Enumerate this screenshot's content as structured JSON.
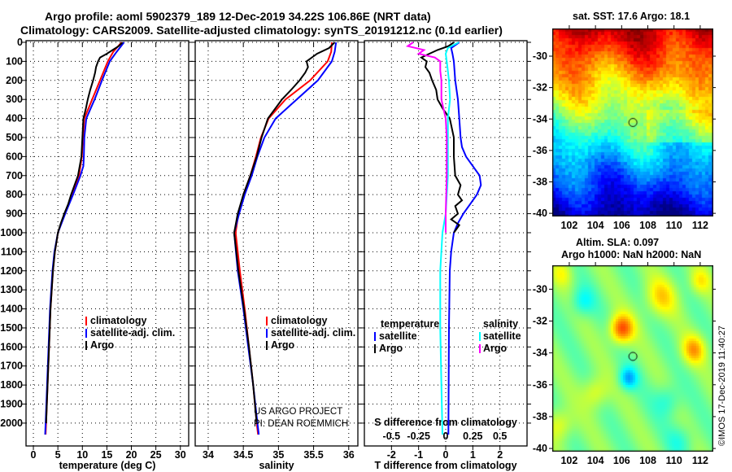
{
  "title_line1": "Argo profile: aoml 5902379_189 12-Dec-2019 34.22S 106.86E (NRT data)",
  "title_line2": "Climatology: CARS2009. Satellite-adjusted climatology: synTS_20191212.nc (0.1d earlier)",
  "credit_line1": "US ARGO PROJECT",
  "credit_line2": "PI: DEAN ROEMMICH",
  "watermark": "©IMOS 17-Dec-2019 11:40:27",
  "colors": {
    "climatology": "#ff0000",
    "satellite": "#0000ff",
    "argo": "#000000",
    "sal_satellite": "#00ffff",
    "sal_argo": "#ff00ff"
  },
  "chart_data": [
    {
      "type": "line",
      "xlabel": "temperature (deg C)",
      "ylabel": "",
      "xlim": [
        -1.5,
        31.7
      ],
      "ylim": [
        0,
        2120
      ],
      "xticks": [
        0,
        5,
        10,
        15,
        20,
        25,
        30
      ],
      "yticks": [
        0,
        100,
        200,
        300,
        400,
        500,
        600,
        700,
        800,
        900,
        1000,
        1100,
        1200,
        1300,
        1400,
        1500,
        1600,
        1700,
        1800,
        1900,
        2000
      ],
      "grid": true,
      "legend": {
        "placement": "bottom-middle",
        "entries": [
          "climatology",
          "satellite-adj. clim.",
          "Argo"
        ]
      },
      "series": [
        {
          "name": "climatology",
          "color": "#ff0000",
          "depth": [
            0,
            50,
            100,
            200,
            300,
            400,
            500,
            600,
            700,
            800,
            900,
            1000,
            1100,
            1200,
            1400,
            1600,
            1800,
            2000,
            2060
          ],
          "values": [
            18.0,
            16.3,
            15.2,
            13.6,
            12.0,
            10.4,
            10.1,
            9.9,
            9.3,
            7.9,
            6.4,
            5.0,
            4.4,
            4.0,
            3.5,
            3.2,
            2.9,
            2.6,
            2.5
          ]
        },
        {
          "name": "satellite-adj. clim.",
          "color": "#0000ff",
          "depth": [
            0,
            50,
            100,
            200,
            300,
            400,
            500,
            600,
            650,
            700,
            800,
            900,
            1000,
            1100,
            1200,
            1400,
            1600,
            1800,
            2000,
            2060
          ],
          "values": [
            18.5,
            17.0,
            15.6,
            14.0,
            12.5,
            10.8,
            10.4,
            10.3,
            10.2,
            9.6,
            8.1,
            6.5,
            5.0,
            4.3,
            3.9,
            3.4,
            3.1,
            2.8,
            2.5,
            2.4
          ]
        },
        {
          "name": "Argo",
          "color": "#000000",
          "depth": [
            0,
            20,
            40,
            60,
            80,
            100,
            130,
            160,
            200,
            250,
            300,
            350,
            400,
            500,
            600,
            700,
            800,
            850,
            900,
            950,
            1000,
            1100,
            1200,
            1400,
            1600,
            1800,
            2000
          ],
          "values": [
            18.2,
            17.4,
            16.2,
            15.0,
            13.6,
            13.2,
            12.8,
            12.6,
            12.2,
            11.6,
            11.1,
            10.7,
            10.2,
            10.0,
            9.8,
            9.1,
            7.7,
            7.1,
            6.3,
            5.6,
            5.0,
            4.4,
            4.0,
            3.5,
            3.2,
            2.9,
            2.6
          ]
        }
      ]
    },
    {
      "type": "line",
      "xlabel": "salinity",
      "xlim": [
        33.815,
        36.13
      ],
      "ylim": [
        0,
        2120
      ],
      "xticks": [
        34,
        34.5,
        35,
        35.5,
        36
      ],
      "grid": true,
      "legend": {
        "placement": "bottom-middle",
        "entries": [
          "climatology",
          "satellite-adj. clim.",
          "Argo"
        ]
      },
      "series": [
        {
          "name": "climatology",
          "color": "#ff0000",
          "depth": [
            0,
            50,
            100,
            200,
            300,
            400,
            500,
            600,
            700,
            800,
            900,
            1000,
            1200,
            1400,
            1600,
            1800,
            2000,
            2060
          ],
          "values": [
            35.76,
            35.75,
            35.7,
            35.45,
            35.1,
            34.86,
            34.75,
            34.68,
            34.6,
            34.5,
            34.43,
            34.39,
            34.45,
            34.52,
            34.58,
            34.64,
            34.69,
            34.71
          ]
        },
        {
          "name": "satellite-adj. clim.",
          "color": "#0000ff",
          "depth": [
            0,
            50,
            100,
            200,
            300,
            400,
            500,
            600,
            700,
            800,
            900,
            1000,
            1200,
            1400,
            1600,
            1800,
            2000,
            2060
          ],
          "values": [
            35.82,
            35.8,
            35.76,
            35.56,
            35.26,
            34.96,
            34.8,
            34.7,
            34.62,
            34.52,
            34.44,
            34.37,
            34.42,
            34.5,
            34.57,
            34.64,
            34.7,
            34.72
          ]
        },
        {
          "name": "Argo",
          "color": "#000000",
          "depth": [
            0,
            30,
            60,
            100,
            130,
            160,
            200,
            250,
            300,
            400,
            500,
            600,
            700,
            800,
            900,
            1000,
            1200,
            1400,
            1600,
            1800,
            2000
          ],
          "values": [
            35.8,
            35.72,
            35.55,
            35.4,
            35.42,
            35.38,
            35.3,
            35.18,
            35.05,
            34.85,
            34.76,
            34.69,
            34.6,
            34.5,
            34.42,
            34.37,
            34.43,
            34.51,
            34.58,
            34.64,
            34.69
          ]
        }
      ]
    },
    {
      "type": "line",
      "xlabel": "T difference from climatology",
      "xlabel_secondary": "S difference from climatology",
      "xlim": [
        -3,
        3
      ],
      "xlim_secondary": [
        -0.75,
        0.75
      ],
      "ylim": [
        0,
        2120
      ],
      "xticks": [
        -2,
        -1,
        0,
        1,
        2
      ],
      "xticks_secondary": [
        -0.5,
        -0.25,
        0,
        0.25,
        0.5
      ],
      "xtick_labels_secondary": [
        "-0.5",
        "-0.25",
        "0",
        "0.25",
        "0.5"
      ],
      "grid": true,
      "legend": {
        "placement": "bottom",
        "temperature_title": "temperature",
        "salinity_title": "salinity",
        "entries": [
          "satellite",
          "Argo"
        ]
      },
      "series": [
        {
          "name": "T satellite",
          "axis": "T",
          "color": "#0000ff",
          "depth": [
            0,
            30,
            60,
            100,
            200,
            300,
            400,
            500,
            550,
            600,
            650,
            700,
            750,
            800,
            850,
            900,
            950,
            1000,
            1100,
            1200,
            1500,
            2060
          ],
          "values": [
            0.5,
            0.2,
            0.25,
            0.3,
            0.35,
            0.45,
            0.5,
            0.55,
            0.6,
            0.75,
            1.0,
            1.25,
            1.3,
            1.15,
            0.9,
            0.65,
            0.45,
            0.3,
            0.2,
            0.15,
            0.12,
            0.1
          ]
        },
        {
          "name": "T Argo",
          "axis": "T",
          "color": "#000000",
          "depth": [
            0,
            20,
            40,
            60,
            80,
            100,
            130,
            160,
            200,
            250,
            300,
            350,
            400,
            500,
            600,
            700,
            750,
            800,
            830,
            860,
            900,
            930,
            960,
            1000
          ],
          "values": [
            0.3,
            0.1,
            -0.3,
            -0.6,
            -0.9,
            -0.7,
            -0.75,
            -0.6,
            -0.5,
            -0.35,
            -0.3,
            -0.1,
            0.15,
            0.3,
            0.3,
            0.35,
            0.55,
            0.45,
            0.6,
            0.35,
            0.45,
            0.2,
            0.5,
            0.3
          ]
        },
        {
          "name": "S satellite",
          "axis": "S",
          "color": "#00ffff",
          "depth": [
            0,
            30,
            60,
            100,
            200,
            300,
            400,
            500,
            700,
            900,
            1000,
            1200,
            1500,
            1800,
            2060
          ],
          "values": [
            0.12,
            0.02,
            0.0,
            0.01,
            0.03,
            0.04,
            0.02,
            0.02,
            0.02,
            0.0,
            -0.03,
            -0.05,
            -0.05,
            -0.04,
            -0.03
          ]
        },
        {
          "name": "S Argo",
          "axis": "S",
          "color": "#ff00ff",
          "depth": [
            0,
            20,
            40,
            60,
            80,
            100,
            150,
            200,
            300,
            400,
            500,
            700,
            900,
            1000
          ],
          "values": [
            -0.3,
            -0.35,
            -0.2,
            -0.25,
            -0.1,
            -0.05,
            -0.05,
            -0.04,
            -0.04,
            0.0,
            0.01,
            0.01,
            0.0,
            0.0
          ]
        }
      ]
    },
    {
      "type": "heatmap",
      "title": "sat. SST: 17.6 Argo: 18.1",
      "xlim": [
        100.7,
        113.0
      ],
      "ylim": [
        -40.2,
        -28.24
      ],
      "xticks": [
        102,
        104,
        106,
        108,
        110,
        112
      ],
      "yticks": [
        -30,
        -32,
        -34,
        -36,
        -38,
        -40
      ],
      "marker": {
        "lon": 106.86,
        "lat": -34.22
      }
    },
    {
      "type": "heatmap",
      "title": "Altim. SLA: 0.097",
      "subtitle": "Argo h1000: NaN h2000: NaN",
      "xlim": [
        100.7,
        113.0
      ],
      "ylim": [
        -40.2,
        -28.5
      ],
      "xticks": [
        102,
        104,
        106,
        108,
        110,
        112
      ],
      "yticks": [
        -30,
        -32,
        -34,
        -36,
        -38,
        -40
      ],
      "marker": {
        "lon": 106.86,
        "lat": -34.22
      }
    }
  ]
}
